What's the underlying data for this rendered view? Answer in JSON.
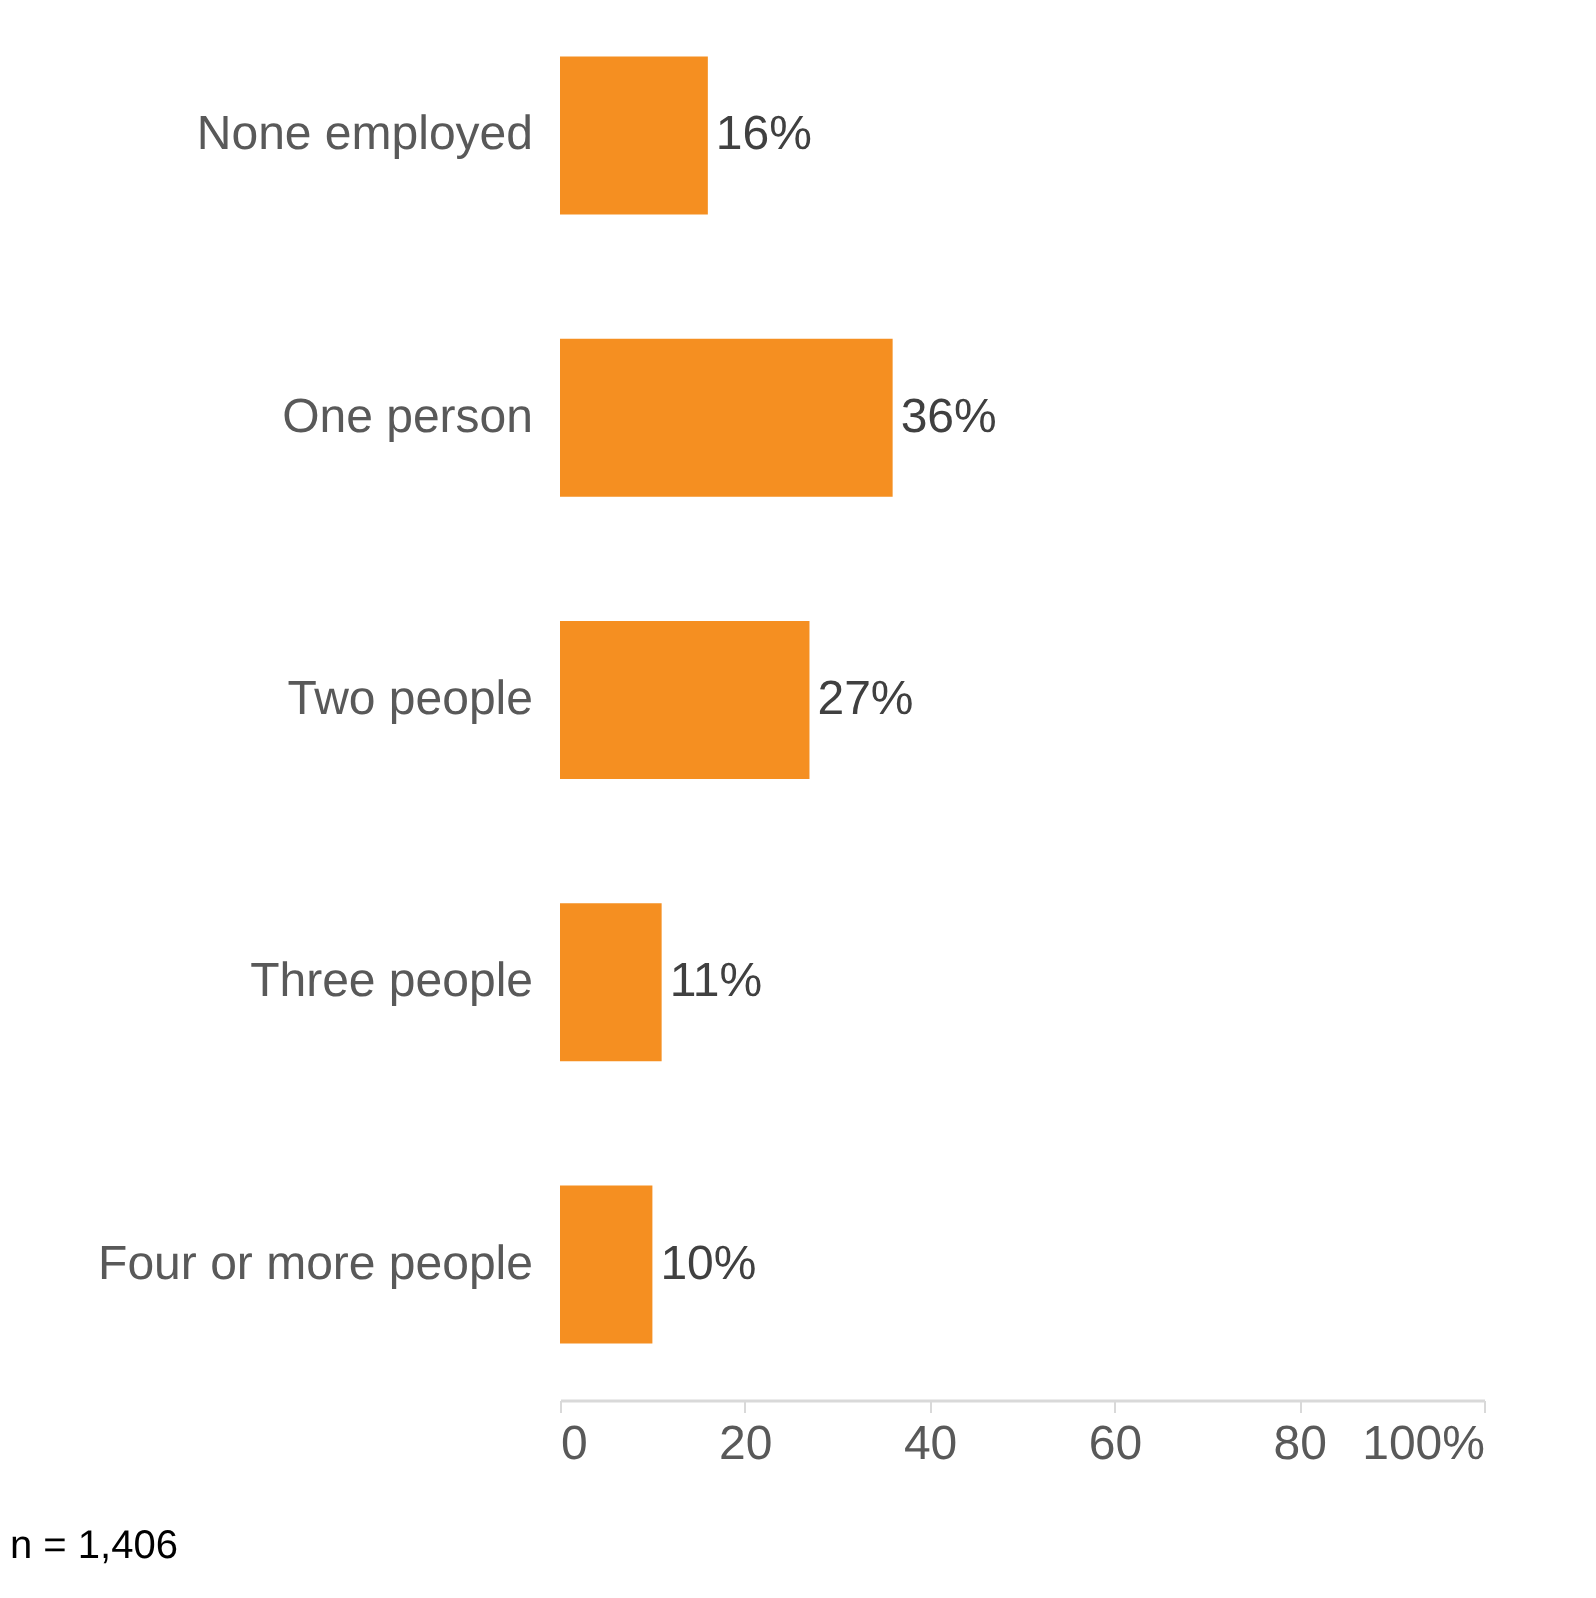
{
  "chart_data": {
    "type": "bar",
    "orientation": "horizontal",
    "categories": [
      "None employed",
      "One person",
      "Two people",
      "Three people",
      "Four or more people"
    ],
    "values": [
      16,
      36,
      27,
      11,
      10
    ],
    "color": "#f58f21",
    "value_labels": [
      "16%",
      "36%",
      "27%",
      "11%",
      "10%"
    ],
    "xlim": [
      0,
      100
    ],
    "xticks": [
      0,
      20,
      40,
      60,
      80,
      {
        "value": 100,
        "label": "100%"
      }
    ],
    "grid": false,
    "annotations": [
      "n = 1,406"
    ]
  }
}
